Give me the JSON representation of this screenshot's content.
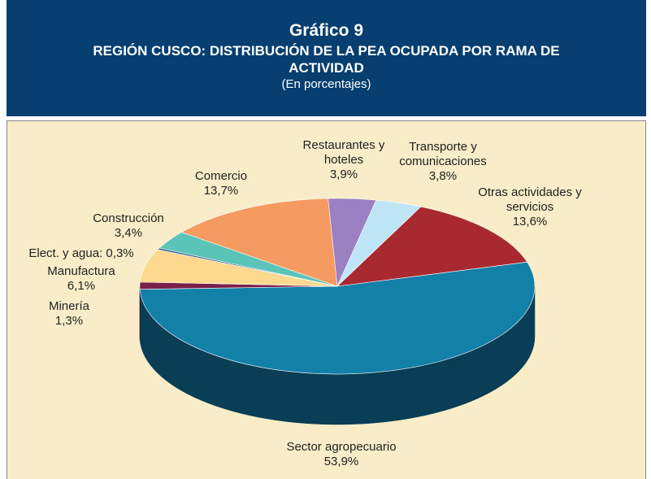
{
  "chart_data": {
    "type": "pie3d",
    "title": "Gráfico 9",
    "subtitle": "REGIÓN CUSCO: DISTRIBUCIÓN DE LA PEA OCUPADA POR RAMA DE ACTIVIDAD",
    "units": "(En porcentajes)",
    "categories": [
      "Sector agropecuario",
      "Minería",
      "Manufactura",
      "Elect. y agua:",
      "Construcción",
      "Comercio",
      "Restaurantes y hoteles",
      "Transporte y comunicaciones",
      "Otras actividades y servicios"
    ],
    "values": [
      53.9,
      1.3,
      6.1,
      0.3,
      3.4,
      13.7,
      3.9,
      3.8,
      13.6
    ],
    "value_labels": [
      "53,9%",
      "1,3%",
      "6,1%",
      "0,3%",
      "3,4%",
      "13,7%",
      "3,9%",
      "3,8%",
      "13,6%"
    ],
    "colors": [
      "#1380a8",
      "#7a1f4a",
      "#fcd98f",
      "#1f4f80",
      "#5bc4b8",
      "#f59a60",
      "#9b80c2",
      "#bde5f6",
      "#a82a30"
    ],
    "side_colors": [
      "#0a3d56",
      "#4a1030",
      "#b8955a",
      "#10304f",
      "#338076",
      "#b06a3c",
      "#66528a",
      "#7ea7b8",
      "#6a1519"
    ]
  }
}
